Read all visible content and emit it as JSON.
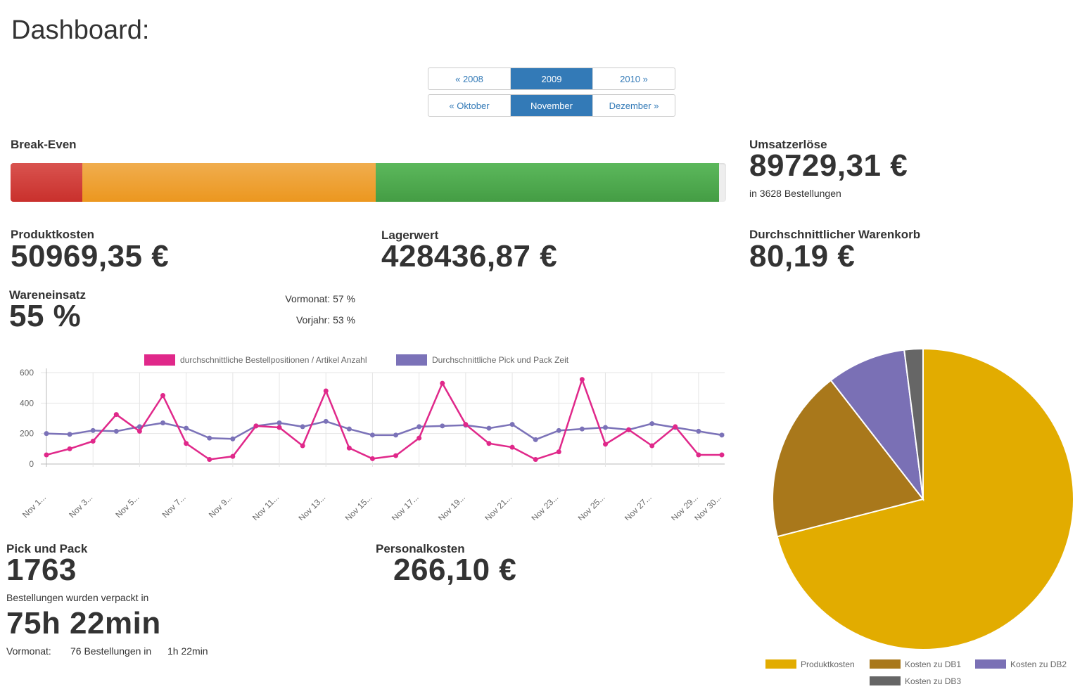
{
  "page_title": "Dashboard:",
  "year_nav": {
    "prev": "« 2008",
    "current": "2009",
    "next": "2010 »"
  },
  "month_nav": {
    "prev": "« Oktober",
    "current": "November",
    "next": "Dezember »"
  },
  "break_even": {
    "label": "Break-Even",
    "segments": [
      {
        "name": "red",
        "fraction": 0.1,
        "color": "#d9534f"
      },
      {
        "name": "orange",
        "fraction": 0.41,
        "color": "#f0ad4e"
      },
      {
        "name": "green",
        "fraction": 0.48,
        "color": "#5cb85c"
      }
    ]
  },
  "umsatz": {
    "label": "Umsatzerlöse",
    "value": "89729,31 €",
    "sub": "in 3628 Bestellungen"
  },
  "produktkosten": {
    "label": "Produktkosten",
    "value": "50969,35 €"
  },
  "lagerwert": {
    "label": "Lagerwert",
    "value": "428436,87 €"
  },
  "warenkorb": {
    "label": "Durchschnittlicher Warenkorb",
    "value": "80,19 €"
  },
  "wareneinsatz": {
    "label": "Wareneinsatz",
    "value": "55 %",
    "vormonat": "Vormonat: 57 %",
    "vorjahr": "Vorjahr: 53 %"
  },
  "pick_pack": {
    "label": "Pick und Pack",
    "value": "1763",
    "sub": "Bestellungen wurden verpackt in",
    "time": "75h 22min",
    "vm_label": "Vormonat:",
    "vm_orders": "76 Bestellungen in",
    "vm_time": "1h 22min"
  },
  "personalkosten": {
    "label": "Personalkosten",
    "value": "266,10 €"
  },
  "chart_data": [
    {
      "type": "line",
      "x": [
        "Nov 1...",
        "Nov 2...",
        "Nov 3...",
        "Nov 4...",
        "Nov 5...",
        "Nov 6...",
        "Nov 7...",
        "Nov 8...",
        "Nov 9...",
        "Nov 10...",
        "Nov 11...",
        "Nov 12...",
        "Nov 13...",
        "Nov 14...",
        "Nov 15...",
        "Nov 16...",
        "Nov 17...",
        "Nov 18...",
        "Nov 19...",
        "Nov 20...",
        "Nov 21...",
        "Nov 22...",
        "Nov 23...",
        "Nov 24...",
        "Nov 25...",
        "Nov 26...",
        "Nov 27...",
        "Nov 28...",
        "Nov 29...",
        "Nov 30..."
      ],
      "x_tick_labels": [
        "Nov 1...",
        "Nov 3...",
        "Nov 5...",
        "Nov 7...",
        "Nov 9...",
        "Nov 11...",
        "Nov 13...",
        "Nov 15...",
        "Nov 17...",
        "Nov 19...",
        "Nov 21...",
        "Nov 23...",
        "Nov 25...",
        "Nov 27...",
        "Nov 29...",
        "Nov 30..."
      ],
      "ylim": [
        0,
        600
      ],
      "yticks": [
        0,
        200,
        400,
        600
      ],
      "series": [
        {
          "name": "durchschnittliche Bestellpositionen / Artikel Anzahl",
          "color": "#e0288a",
          "values": [
            60,
            100,
            150,
            325,
            215,
            450,
            135,
            30,
            50,
            250,
            240,
            120,
            480,
            105,
            35,
            55,
            170,
            530,
            260,
            135,
            110,
            30,
            80,
            555,
            130,
            225,
            120,
            245,
            60,
            60
          ]
        },
        {
          "name": "Durchschnittliche Pick und Pack Zeit",
          "color": "#7b72b8",
          "values": [
            200,
            195,
            220,
            215,
            245,
            270,
            235,
            170,
            165,
            250,
            270,
            245,
            280,
            230,
            190,
            190,
            245,
            250,
            255,
            235,
            260,
            160,
            220,
            230,
            240,
            225,
            265,
            240,
            215,
            190
          ]
        }
      ],
      "legend": "top",
      "grid": true
    },
    {
      "type": "pie",
      "slices": [
        {
          "label": "Produktkosten",
          "value": 71,
          "color": "#e2ac00"
        },
        {
          "label": "Kosten zu DB1",
          "value": 18.5,
          "color": "#a9781b"
        },
        {
          "label": "Kosten zu DB2",
          "value": 8.5,
          "color": "#7a70b5"
        },
        {
          "label": "Kosten zu DB3",
          "value": 2,
          "color": "#666666"
        }
      ],
      "legend": "bottom"
    }
  ]
}
